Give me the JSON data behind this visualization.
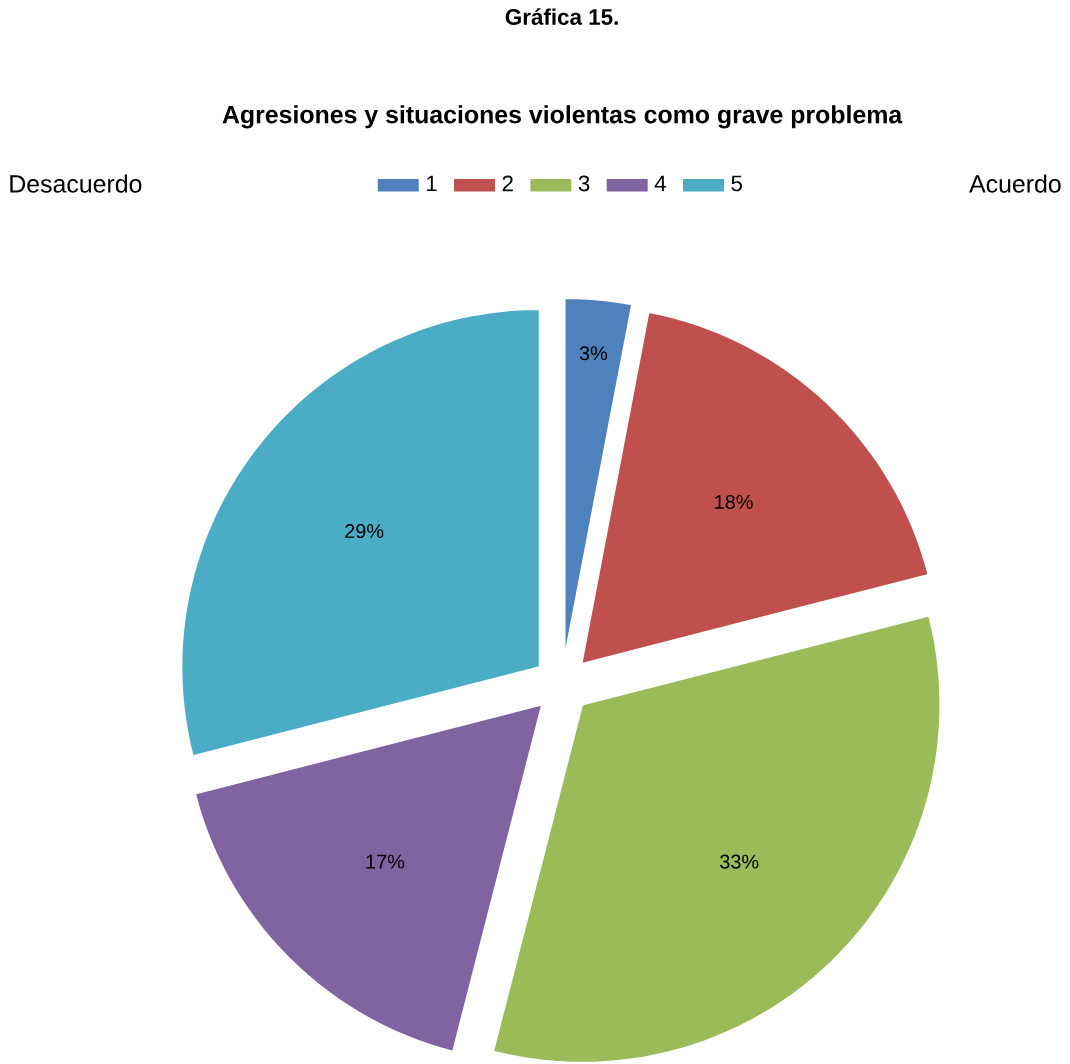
{
  "chart_data": {
    "type": "pie",
    "title": "Gráfica 15.",
    "subtitle": "Agresiones y situaciones violentas como grave problema",
    "categories": [
      "1",
      "2",
      "3",
      "4",
      "5"
    ],
    "values": [
      3,
      18,
      33,
      17,
      29
    ],
    "colors": [
      "#4f81bd",
      "#c0504d",
      "#9bbb59",
      "#8064a2",
      "#4bacc6"
    ],
    "value_labels": [
      "3%",
      "18%",
      "33%",
      "17%",
      "29%"
    ],
    "legend": "top",
    "annotations": [
      "Desacuerdo",
      "Acuerdo"
    ]
  }
}
